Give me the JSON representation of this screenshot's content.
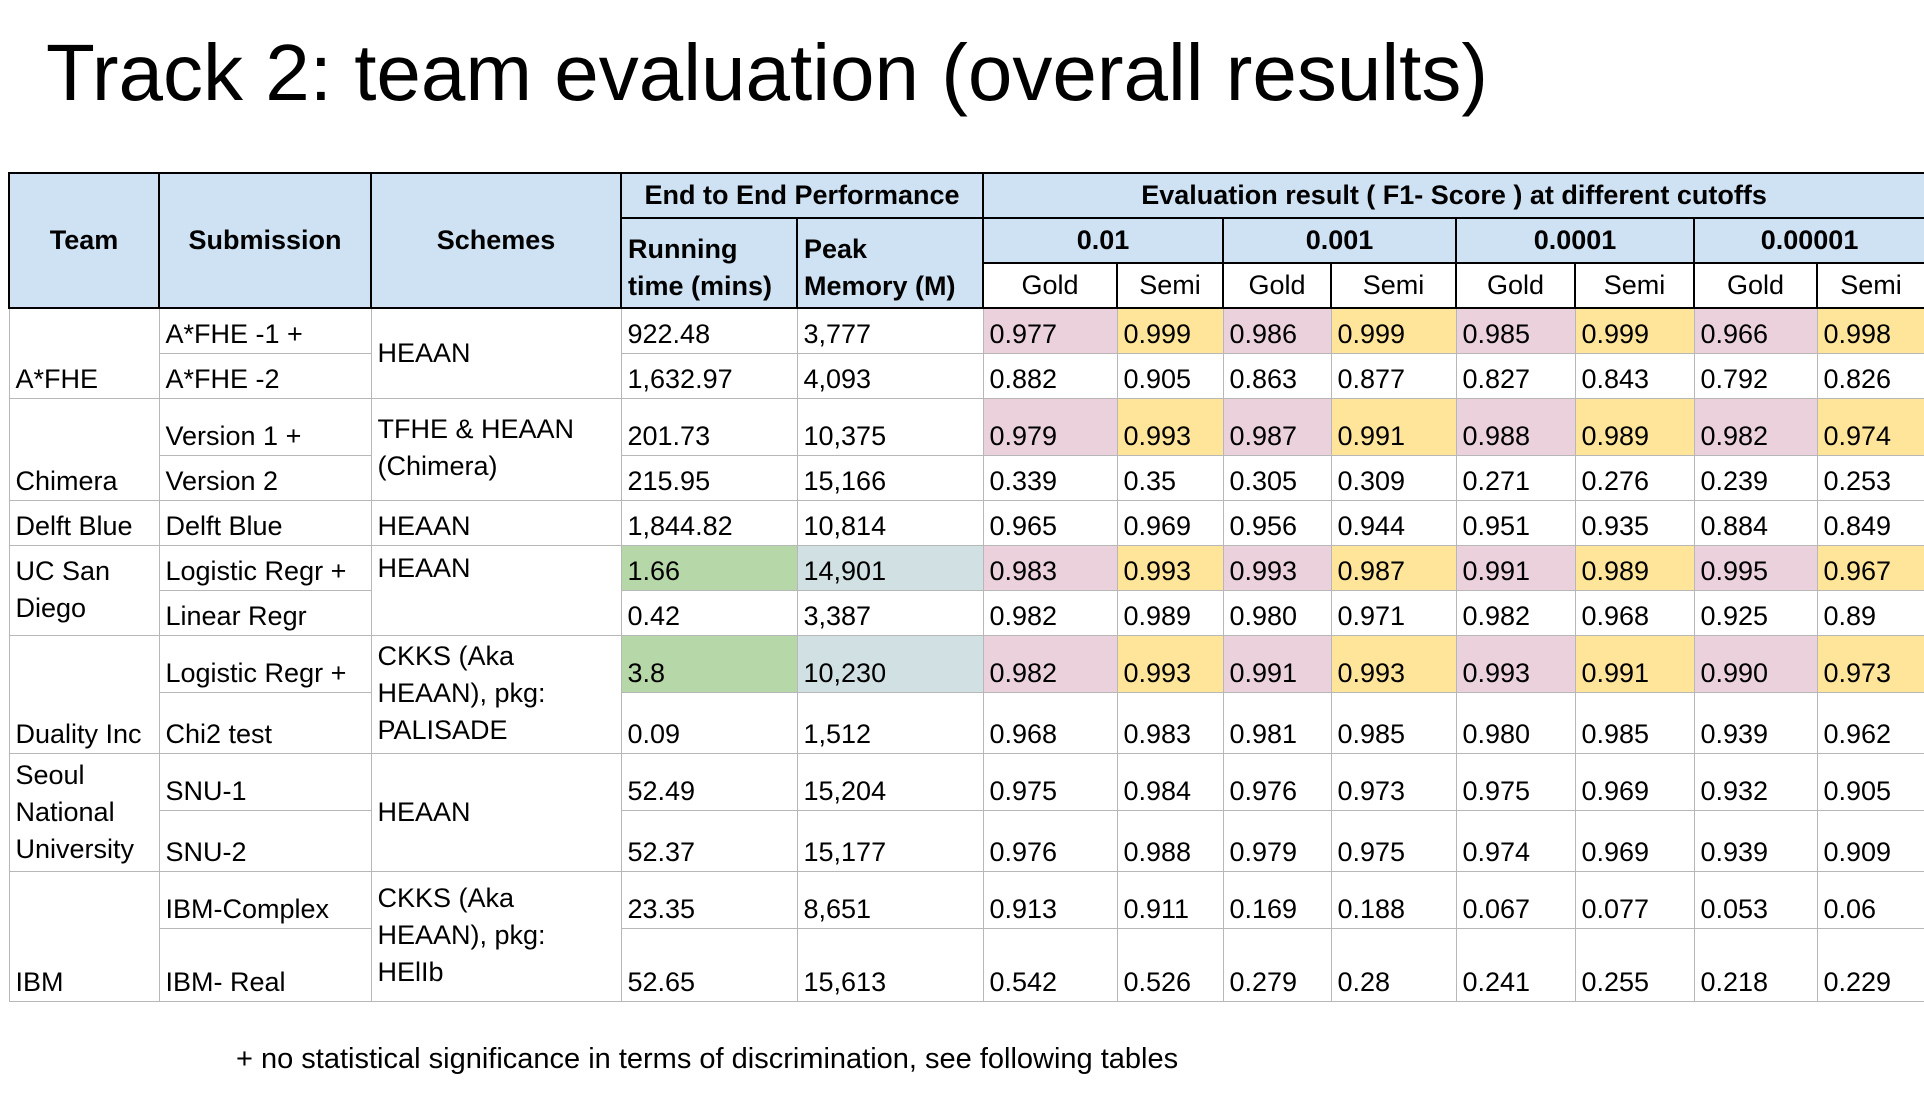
{
  "title": "Track 2: team evaluation (overall results)",
  "header": {
    "team": "Team",
    "submission": "Submission",
    "schemes": "Schemes",
    "e2e": "End to End Performance",
    "eval": "Evaluation result ( F1- Score ) at different cutoffs",
    "running_time": "Running time (mins)",
    "peak_memory": "Peak Memory (M)",
    "cutoffs": [
      "0.01",
      "0.001",
      "0.0001",
      "0.00001"
    ],
    "gold": "Gold",
    "semi": "Semi"
  },
  "teams": [
    {
      "team": "A*FHE",
      "schemes": "HEAAN",
      "rows": [
        {
          "submission": "A*FHE -1 +",
          "running_time": "922.48",
          "peak_memory": "3,777",
          "scores": [
            "0.977",
            "0.999",
            "0.986",
            "0.999",
            "0.985",
            "0.999",
            "0.966",
            "0.998"
          ]
        },
        {
          "submission": "A*FHE -2",
          "running_time": "1,632.97",
          "peak_memory": "4,093",
          "scores": [
            "0.882",
            "0.905",
            "0.863",
            "0.877",
            "0.827",
            "0.843",
            "0.792",
            "0.826"
          ]
        }
      ]
    },
    {
      "team": "Chimera",
      "schemes": "TFHE & HEAAN (Chimera)",
      "rows": [
        {
          "submission": "Version 1 +",
          "running_time": "201.73",
          "peak_memory": "10,375",
          "scores": [
            "0.979",
            "0.993",
            "0.987",
            "0.991",
            "0.988",
            "0.989",
            "0.982",
            "0.974"
          ]
        },
        {
          "submission": "Version 2",
          "running_time": "215.95",
          "peak_memory": "15,166",
          "scores": [
            "0.339",
            "0.35",
            "0.305",
            "0.309",
            "0.271",
            "0.276",
            "0.239",
            "0.253"
          ]
        }
      ]
    },
    {
      "team": "Delft Blue",
      "schemes": "HEAAN",
      "rows": [
        {
          "submission": "Delft Blue",
          "running_time": "1,844.82",
          "peak_memory": "10,814",
          "scores": [
            "0.965",
            "0.969",
            "0.956",
            "0.944",
            "0.951",
            "0.935",
            "0.884",
            "0.849"
          ]
        }
      ]
    },
    {
      "team": "UC San Diego",
      "schemes": "HEAAN",
      "rows": [
        {
          "submission": "Logistic Regr +",
          "running_time": "1.66",
          "peak_memory": "14,901",
          "scores": [
            "0.983",
            "0.993",
            "0.993",
            "0.987",
            "0.991",
            "0.989",
            "0.995",
            "0.967"
          ]
        },
        {
          "submission": "Linear Regr",
          "running_time": "0.42",
          "peak_memory": "3,387",
          "scores": [
            "0.982",
            "0.989",
            "0.980",
            "0.971",
            "0.982",
            "0.968",
            "0.925",
            "0.89"
          ]
        }
      ]
    },
    {
      "team": "Duality Inc",
      "schemes": "CKKS (Aka HEAAN), pkg: PALISADE",
      "rows": [
        {
          "submission": "Logistic Regr +",
          "running_time": "3.8",
          "peak_memory": "10,230",
          "scores": [
            "0.982",
            "0.993",
            "0.991",
            "0.993",
            "0.993",
            "0.991",
            "0.990",
            "0.973"
          ]
        },
        {
          "submission": "Chi2 test",
          "running_time": "0.09",
          "peak_memory": "1,512",
          "scores": [
            "0.968",
            "0.983",
            "0.981",
            "0.985",
            "0.980",
            "0.985",
            "0.939",
            "0.962"
          ]
        }
      ]
    },
    {
      "team": "Seoul National University",
      "schemes": "HEAAN",
      "rows": [
        {
          "submission": "SNU-1",
          "running_time": "52.49",
          "peak_memory": "15,204",
          "scores": [
            "0.975",
            "0.984",
            "0.976",
            "0.973",
            "0.975",
            "0.969",
            "0.932",
            "0.905"
          ]
        },
        {
          "submission": "SNU-2",
          "running_time": "52.37",
          "peak_memory": "15,177",
          "scores": [
            "0.976",
            "0.988",
            "0.979",
            "0.975",
            "0.974",
            "0.969",
            "0.939",
            "0.909"
          ]
        }
      ]
    },
    {
      "team": "IBM",
      "schemes": "CKKS (Aka HEAAN), pkg: HElIb",
      "rows": [
        {
          "submission": "IBM-Complex",
          "running_time": "23.35",
          "peak_memory": "8,651",
          "scores": [
            "0.913",
            "0.911",
            "0.169",
            "0.188",
            "0.067",
            "0.077",
            "0.053",
            "0.06"
          ]
        },
        {
          "submission": "IBM- Real",
          "running_time": "52.65",
          "peak_memory": "15,613",
          "scores": [
            "0.542",
            "0.526",
            "0.279",
            "0.28",
            "0.241",
            "0.255",
            "0.218",
            "0.229"
          ]
        }
      ]
    }
  ],
  "colors": {
    "header_bg": "#cfe2f3",
    "gold_highlight": "#ead1dc",
    "semi_highlight": "#ffe599",
    "time_highlight": "#b6d7a8",
    "memory_highlight": "#d0e0e3"
  },
  "footnote": "+ no statistical significance in terms of discrimination, see following tables"
}
